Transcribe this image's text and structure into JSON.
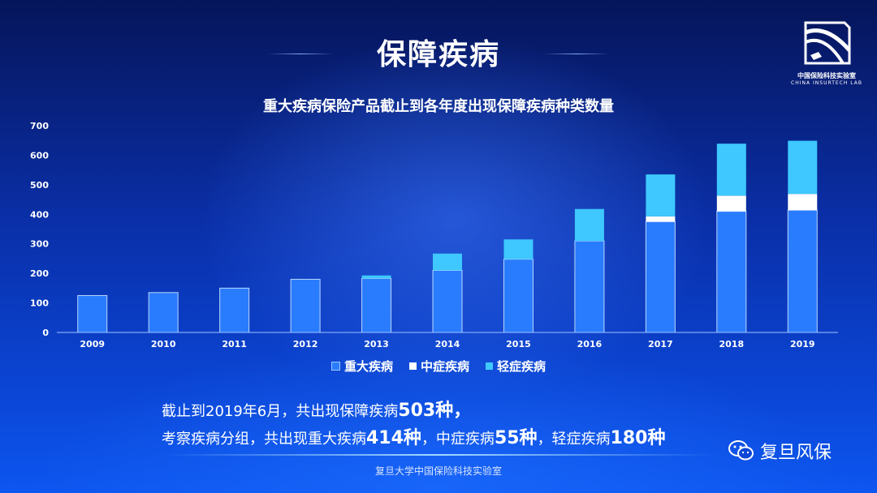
{
  "header": {
    "title": "保障疾病"
  },
  "logo": {
    "name_cn": "中国保险科技实验室",
    "name_en": "CHINA INSURTECH LAB"
  },
  "chart_data": {
    "type": "bar",
    "stacked": true,
    "title": "重大疾病保险产品截止到各年度出现保障疾病种类数量",
    "xlabel": "",
    "ylabel": "",
    "ylim": [
      0,
      700
    ],
    "yticks": [
      0,
      100,
      200,
      300,
      400,
      500,
      600,
      700
    ],
    "categories": [
      "2009",
      "2010",
      "2011",
      "2012",
      "2013",
      "2014",
      "2015",
      "2016",
      "2017",
      "2018",
      "2019"
    ],
    "series": [
      {
        "name": "重大疾病",
        "color": "#2a7cff",
        "values": [
          125,
          135,
          150,
          180,
          183,
          210,
          248,
          310,
          375,
          410,
          414
        ]
      },
      {
        "name": "中症疾病",
        "color": "#ffffff",
        "values": [
          0,
          0,
          0,
          0,
          0,
          0,
          0,
          0,
          18,
          53,
          55
        ]
      },
      {
        "name": "轻症疾病",
        "color": "#3ec8ff",
        "values": [
          0,
          0,
          0,
          0,
          10,
          57,
          67,
          108,
          142,
          176,
          180
        ]
      }
    ],
    "grid": false,
    "legend_position": "bottom"
  },
  "summary": {
    "line1_prefix": "截止到2019年6月，共出现保障疾病",
    "line1_num": "503种，",
    "line2_a": "考察疾病分组，共出现重大疾病",
    "line2_num1": "414种",
    "line2_b": "，中症疾病",
    "line2_num2": "55种",
    "line2_c": "，轻症疾病",
    "line2_num3": "180种"
  },
  "footer": {
    "text": "复旦大学中国保险科技实验室"
  },
  "watermark": {
    "text": "复旦风保",
    "icon": "wechat-icon"
  }
}
